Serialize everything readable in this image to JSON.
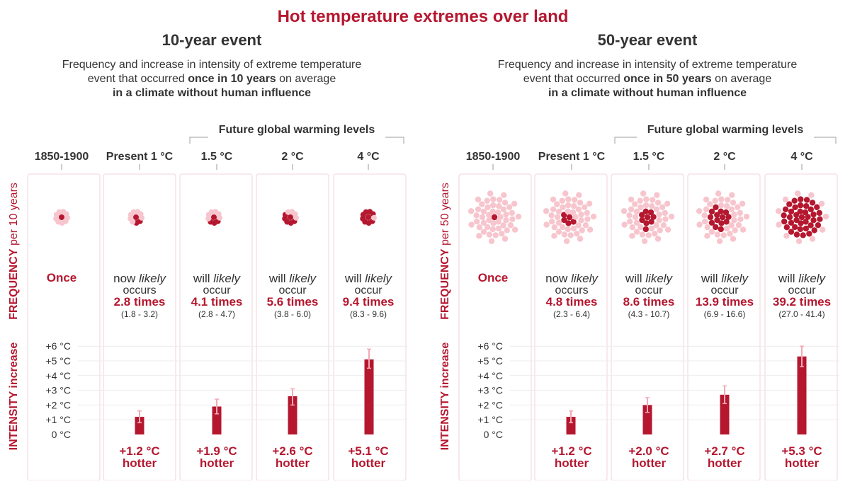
{
  "title": "Hot temperature extremes over land",
  "colors": {
    "accent": "#b5172f",
    "dot_light": "#f7c5cd",
    "dot_dark": "#b5172f",
    "text": "#333333",
    "panel_border": "#f3dde2",
    "errorbar": "#f2a9b5"
  },
  "labels": {
    "future_heading": "Future global warming levels",
    "intensity_axis": "INTENSITY increase",
    "hotter_word": "hotter"
  },
  "chart_data": [
    {
      "type": "bar",
      "title": "10-year event",
      "subtitle_lines": [
        [
          {
            "t": "Frequency and increase in intensity of extreme temperature",
            "b": false
          }
        ],
        [
          {
            "t": "event that occurred ",
            "b": false
          },
          {
            "t": "once in 10 years",
            "b": true
          },
          {
            "t": " on average",
            "b": false
          }
        ],
        [
          {
            "t": "in a climate without human influence",
            "b": true
          }
        ]
      ],
      "frequency_axis": {
        "main": "FREQUENCY",
        "rest": " per 10 years"
      },
      "categories": [
        "1850-1900",
        "Present 1 °C",
        "1.5 °C",
        "2 °C",
        "4 °C"
      ],
      "frequency": [
        {
          "kind": "once",
          "label": "Once",
          "total_dots": 10,
          "dark_dots": 1
        },
        {
          "kind": "times",
          "prefix": "now",
          "verb": "occurs",
          "value_text": "2.8 times",
          "range": "(1.8 - 3.2)",
          "total_dots": 10,
          "dark_dots": 3
        },
        {
          "kind": "times",
          "prefix": "will",
          "verb": "occur",
          "value_text": "4.1 times",
          "range": "(2.8 - 4.7)",
          "total_dots": 10,
          "dark_dots": 4
        },
        {
          "kind": "times",
          "prefix": "will",
          "verb": "occur",
          "value_text": "5.6 times",
          "range": "(3.8 - 6.0)",
          "total_dots": 10,
          "dark_dots": 6
        },
        {
          "kind": "times",
          "prefix": "will",
          "verb": "occur",
          "value_text": "9.4 times",
          "range": "(8.3 - 9.6)",
          "total_dots": 10,
          "dark_dots": 9
        }
      ],
      "intensity": {
        "ylim": [
          0,
          6
        ],
        "ticks": [
          "0 °C",
          "+1 °C",
          "+2 °C",
          "+3 °C",
          "+4 °C",
          "+5 °C",
          "+6 °C"
        ],
        "values": [
          null,
          1.2,
          1.9,
          2.6,
          5.1
        ],
        "ranges": [
          null,
          [
            0.8,
            1.6
          ],
          [
            1.4,
            2.4
          ],
          [
            2.0,
            3.1
          ],
          [
            4.5,
            5.8
          ]
        ],
        "value_labels": [
          "",
          "+1.2 °C",
          "+1.9 °C",
          "+2.6 °C",
          "+5.1 °C"
        ]
      }
    },
    {
      "type": "bar",
      "title": "50-year event",
      "subtitle_lines": [
        [
          {
            "t": "Frequency and increase in intensity of extreme temperature",
            "b": false
          }
        ],
        [
          {
            "t": "event that occurred ",
            "b": false
          },
          {
            "t": "once in 50 years",
            "b": true
          },
          {
            "t": " on average",
            "b": false
          }
        ],
        [
          {
            "t": "in a climate without human influence",
            "b": true
          }
        ]
      ],
      "frequency_axis": {
        "main": "FREQUENCY",
        "rest": " per 50 years"
      },
      "categories": [
        "1850-1900",
        "Present 1 °C",
        "1.5 °C",
        "2 °C",
        "4 °C"
      ],
      "frequency": [
        {
          "kind": "once",
          "label": "Once",
          "total_dots": 50,
          "dark_dots": 1
        },
        {
          "kind": "times",
          "prefix": "now",
          "verb": "occurs",
          "value_text": "4.8 times",
          "range": "(2.3 - 6.4)",
          "total_dots": 50,
          "dark_dots": 5
        },
        {
          "kind": "times",
          "prefix": "will",
          "verb": "occur",
          "value_text": "8.6 times",
          "range": "(4.3 - 10.7)",
          "total_dots": 50,
          "dark_dots": 9
        },
        {
          "kind": "times",
          "prefix": "will",
          "verb": "occur",
          "value_text": "13.9 times",
          "range": "(6.9 - 16.6)",
          "total_dots": 50,
          "dark_dots": 14
        },
        {
          "kind": "times",
          "prefix": "will",
          "verb": "occur",
          "value_text": "39.2 times",
          "range": "(27.0 - 41.4)",
          "total_dots": 50,
          "dark_dots": 39
        }
      ],
      "intensity": {
        "ylim": [
          0,
          6
        ],
        "ticks": [
          "0 °C",
          "+1 °C",
          "+2 °C",
          "+3 °C",
          "+4 °C",
          "+5 °C",
          "+6 °C"
        ],
        "values": [
          null,
          1.2,
          2.0,
          2.7,
          5.3
        ],
        "ranges": [
          null,
          [
            0.8,
            1.6
          ],
          [
            1.5,
            2.5
          ],
          [
            2.1,
            3.3
          ],
          [
            4.6,
            6.0
          ]
        ],
        "value_labels": [
          "",
          "+1.2 °C",
          "+2.0 °C",
          "+2.7 °C",
          "+5.3 °C"
        ]
      }
    }
  ]
}
